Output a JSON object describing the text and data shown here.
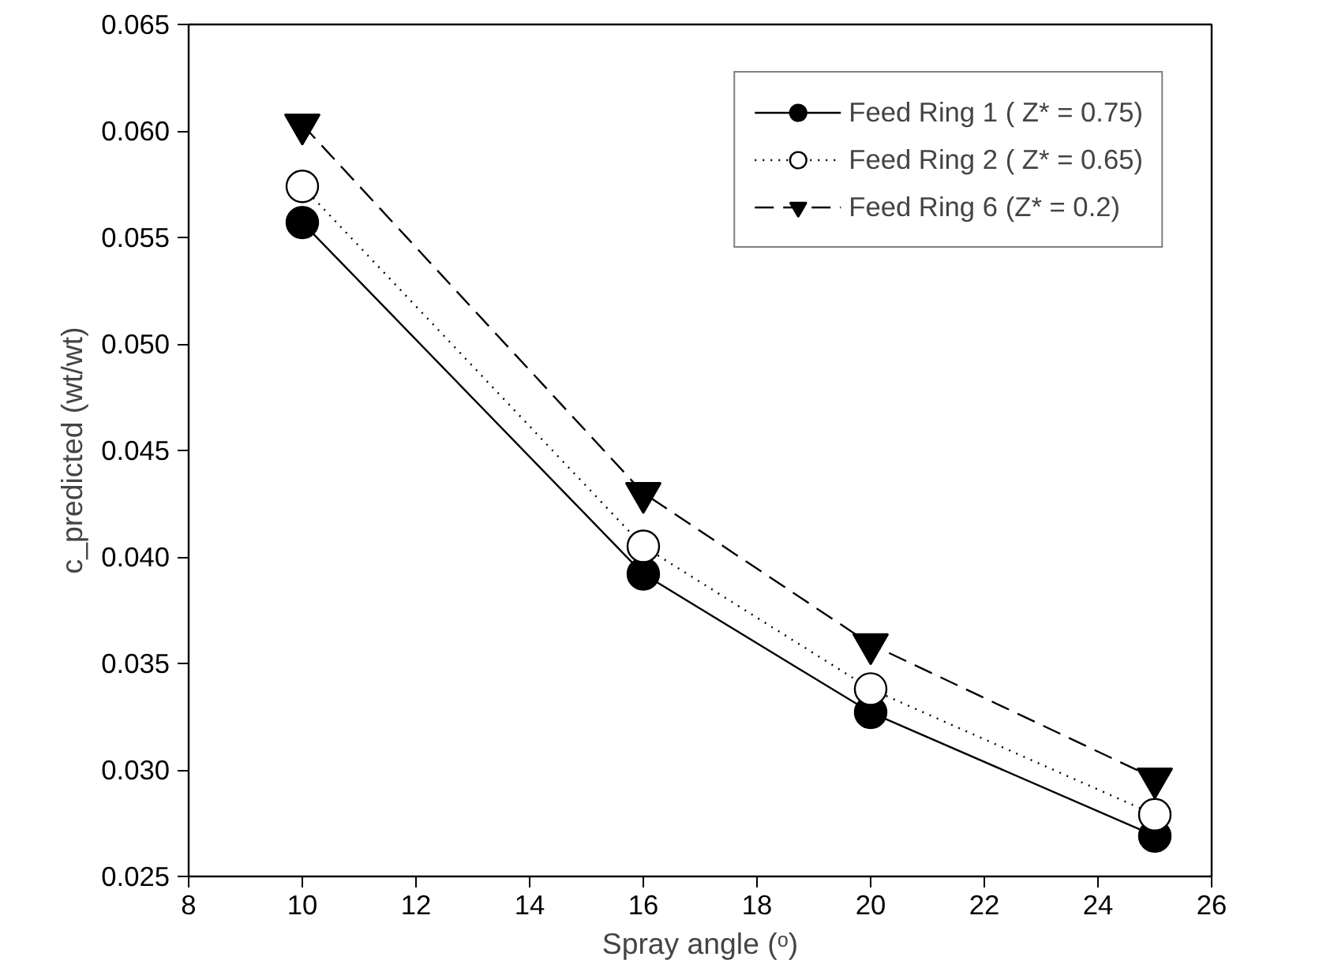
{
  "chart_data": {
    "type": "line",
    "xlabel": "Spray angle (ᵒ)",
    "ylabel": "c_predicted (wt/wt)",
    "x": [
      10,
      16,
      20,
      25
    ],
    "series": [
      {
        "name": "Feed Ring 1 ( Z* = 0.75)",
        "color": "#000000",
        "marker": "circle",
        "line_style": "solid",
        "values": [
          0.0557,
          0.0392,
          0.0327,
          0.0269
        ]
      },
      {
        "name": "Feed Ring 2 ( Z* = 0.65)",
        "color": "#000000",
        "marker": "circle",
        "line_style": "dotted",
        "values": [
          0.0574,
          0.0405,
          0.0338,
          0.0279
        ]
      },
      {
        "name": "Feed Ring 6 (Z* = 0.2)",
        "color": "#000000",
        "marker": "triangle",
        "line_style": "dashed",
        "values": [
          0.0603,
          0.043,
          0.0359,
          0.0296
        ]
      }
    ],
    "xlim": [
      8,
      26
    ],
    "xticks": [
      8,
      10,
      12,
      14,
      16,
      18,
      20,
      22,
      24,
      26
    ],
    "ylim": [
      0.025,
      0.065
    ],
    "yticks": [
      {
        "value": 0.025,
        "label": "0.025"
      },
      {
        "value": 0.03,
        "label": "0.030"
      },
      {
        "value": 0.035,
        "label": "0.035"
      },
      {
        "value": 0.04,
        "label": "0.040"
      },
      {
        "value": 0.045,
        "label": "0.045"
      },
      {
        "value": 0.05,
        "label": "0.050"
      },
      {
        "value": 0.055,
        "label": "0.055"
      },
      {
        "value": 0.06,
        "label": "0.060"
      },
      {
        "value": 0.065,
        "label": "0.065"
      }
    ],
    "grid": false,
    "legend": "top right"
  }
}
